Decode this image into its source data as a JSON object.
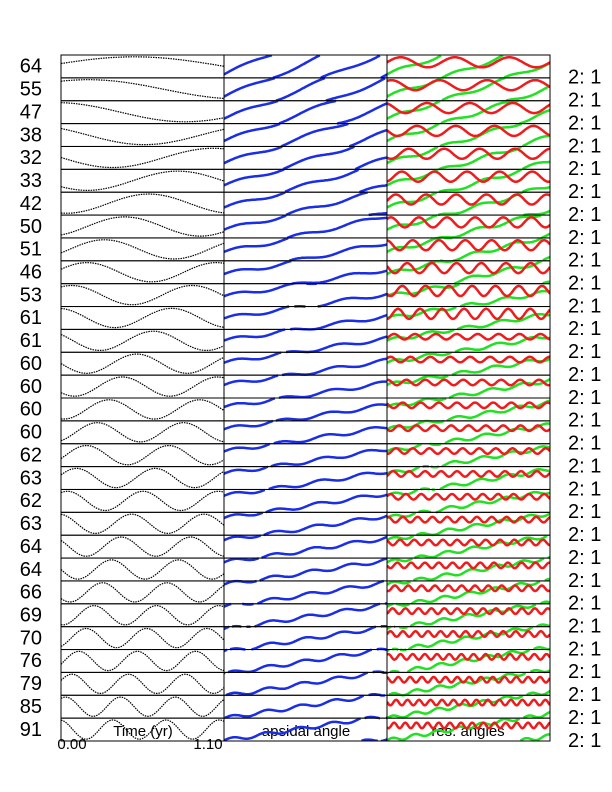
{
  "rows": [
    {
      "label": "64",
      "resonance": "2: 1"
    },
    {
      "label": "55",
      "resonance": "2: 1"
    },
    {
      "label": "47",
      "resonance": "2: 1"
    },
    {
      "label": "38",
      "resonance": "2: 1"
    },
    {
      "label": "32",
      "resonance": "2: 1"
    },
    {
      "label": "33",
      "resonance": "2: 1"
    },
    {
      "label": "42",
      "resonance": "2: 1"
    },
    {
      "label": "50",
      "resonance": "2: 1"
    },
    {
      "label": "51",
      "resonance": "2: 1"
    },
    {
      "label": "46",
      "resonance": "2: 1"
    },
    {
      "label": "53",
      "resonance": "2: 1"
    },
    {
      "label": "61",
      "resonance": "2: 1"
    },
    {
      "label": "61",
      "resonance": "2: 1"
    },
    {
      "label": "60",
      "resonance": "2: 1"
    },
    {
      "label": "60",
      "resonance": "2: 1"
    },
    {
      "label": "60",
      "resonance": "2: 1"
    },
    {
      "label": "60",
      "resonance": "2: 1"
    },
    {
      "label": "62",
      "resonance": "2: 1"
    },
    {
      "label": "63",
      "resonance": "2: 1"
    },
    {
      "label": "62",
      "resonance": "2: 1"
    },
    {
      "label": "63",
      "resonance": "2: 1"
    },
    {
      "label": "64",
      "resonance": "2: 1"
    },
    {
      "label": "64",
      "resonance": "2: 1"
    },
    {
      "label": "66",
      "resonance": "2: 1"
    },
    {
      "label": "69",
      "resonance": "2: 1"
    },
    {
      "label": "70",
      "resonance": "2: 1"
    },
    {
      "label": "76",
      "resonance": "2: 1"
    },
    {
      "label": "79",
      "resonance": "2: 1"
    },
    {
      "label": "85",
      "resonance": "2: 1"
    },
    {
      "label": "91",
      "resonance": "2: 1"
    }
  ],
  "x_axis": {
    "start": "0.00",
    "title": "Time (yr)",
    "end": "1.10"
  },
  "column_titles": [
    "apsidal angle",
    "res. angles"
  ]
}
